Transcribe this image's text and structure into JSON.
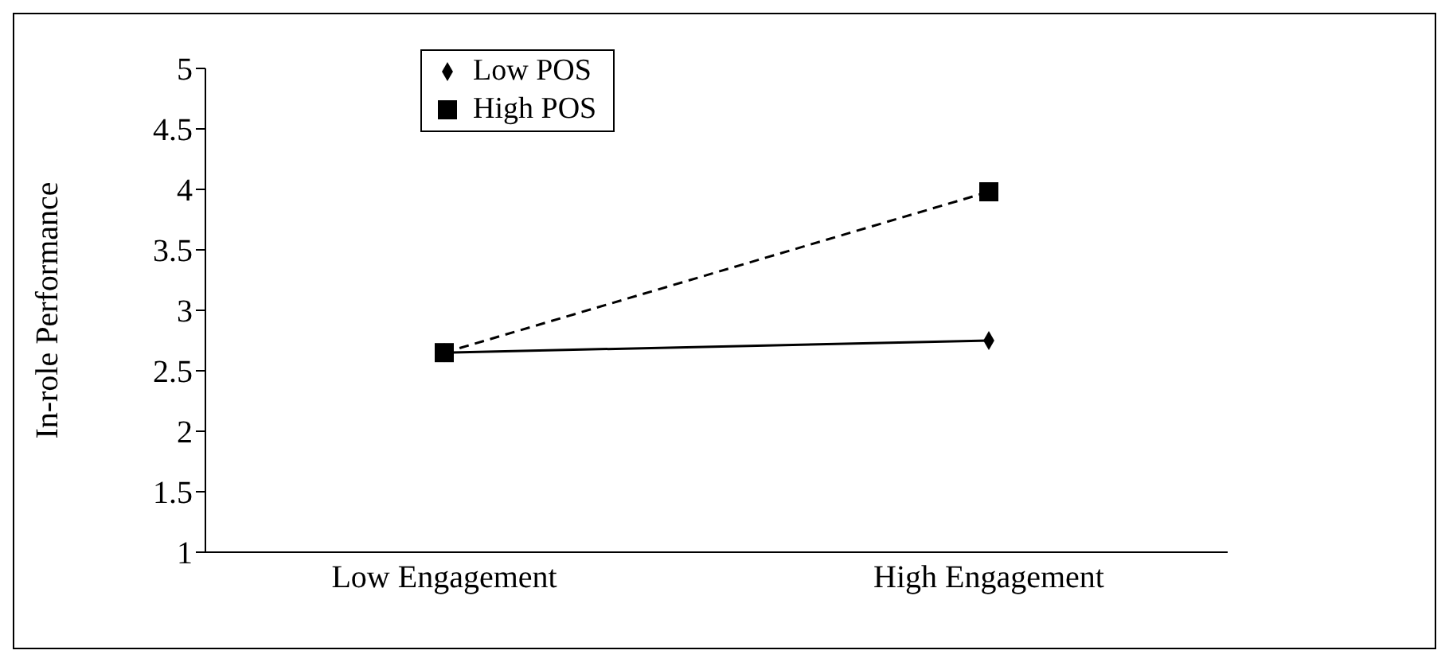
{
  "chart_data": {
    "type": "line",
    "ylabel": "In-role Performance",
    "categories": [
      "Low Engagement",
      "High Engagement"
    ],
    "series": [
      {
        "name": "Low POS",
        "color": "#000000",
        "values": [
          2.65,
          2.75
        ],
        "marker": "diamond",
        "line_style": "solid"
      },
      {
        "name": "High POS",
        "color": "#000000",
        "values": [
          2.65,
          3.98
        ],
        "marker": "square",
        "line_style": "dashed"
      }
    ],
    "ylim": [
      1,
      5
    ],
    "yticks": [
      1,
      1.5,
      2,
      2.5,
      3,
      3.5,
      4,
      4.5,
      5
    ],
    "grid": false,
    "legend": "top left"
  }
}
